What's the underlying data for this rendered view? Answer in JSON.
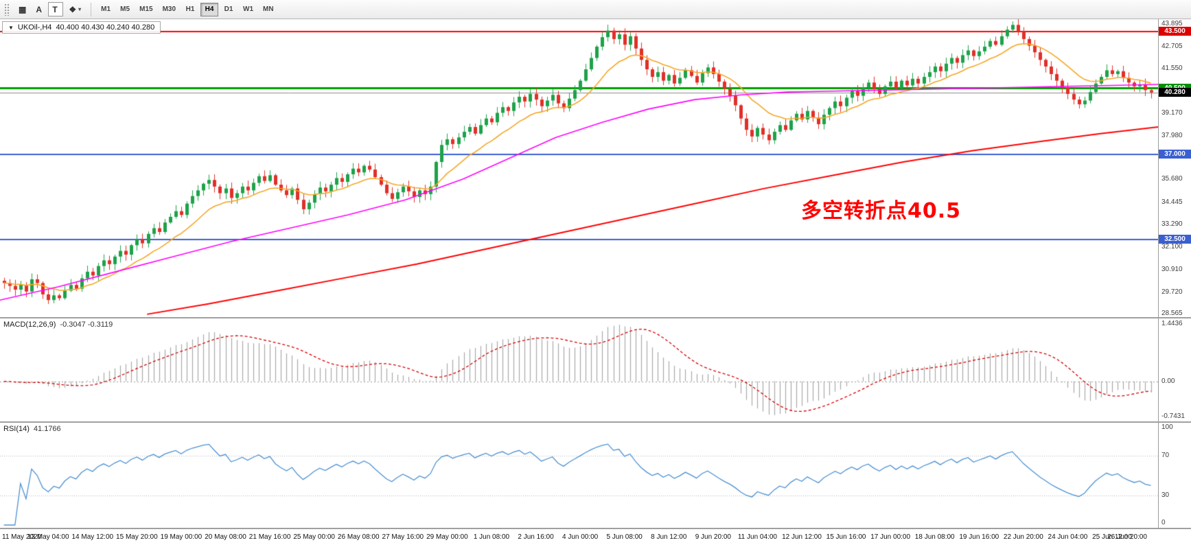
{
  "toolbar": {
    "buttons": [
      {
        "name": "chart-grid",
        "glyph": "▦",
        "caret": "",
        "bordered": false
      },
      {
        "name": "letter-a",
        "glyph": "A",
        "caret": "",
        "bordered": false
      },
      {
        "name": "text-tool",
        "glyph": "T",
        "caret": "",
        "bordered": true
      },
      {
        "name": "shapes",
        "glyph": "❖",
        "caret": "▾",
        "bordered": false
      }
    ],
    "timeframes": [
      "M1",
      "M5",
      "M15",
      "M30",
      "H1",
      "H4",
      "D1",
      "W1",
      "MN"
    ],
    "active_timeframe": "H4"
  },
  "chart": {
    "symbol_title": "UKOil-,H4",
    "ohlc": "40.400 40.430 40.240 40.280",
    "annotation": "多空转折点40.5",
    "scale_min": 28.4,
    "scale_max": 44.15,
    "y_ticks": [
      "43.895",
      "42.705",
      "41.550",
      "39.170",
      "37.980",
      "35.680",
      "34.445",
      "33.290",
      "32.100",
      "30.910",
      "29.720",
      "28.565"
    ],
    "hlines": [
      {
        "price": 43.5,
        "label": "43.500",
        "color": "#ff0000",
        "badge": "#dd0000",
        "width": 2
      },
      {
        "price": 40.5,
        "label": "40.500",
        "color": "#00a000",
        "badge": "#009000",
        "width": 3
      },
      {
        "price": 37.0,
        "label": "37.000",
        "color": "#3a5fd0",
        "badge": "#3a5fd0",
        "width": 2
      },
      {
        "price": 32.5,
        "label": "32.500",
        "color": "#3a5fd0",
        "badge": "#3a5fd0",
        "width": 2
      }
    ],
    "current_price": {
      "value": 40.28,
      "label": "40.280",
      "line_color": "#8a8a8a",
      "badge": "#000000"
    },
    "up_color": "#1ea24a",
    "down_color": "#e03028",
    "ma_fast_color": "#f5a623",
    "ma_mid_color": "#ff00ff",
    "ma_slow_color": "#ff0000",
    "closes": [
      30.2,
      30.05,
      29.85,
      30.1,
      29.75,
      30.4,
      30.2,
      29.6,
      29.3,
      29.55,
      29.4,
      29.8,
      30.1,
      29.9,
      30.45,
      30.8,
      30.6,
      31.1,
      31.4,
      31.2,
      31.6,
      31.9,
      31.7,
      32.2,
      32.5,
      32.3,
      32.8,
      33.1,
      32.9,
      33.4,
      33.7,
      34.0,
      33.8,
      34.4,
      34.8,
      35.1,
      35.45,
      35.65,
      35.3,
      34.95,
      35.2,
      34.7,
      34.95,
      35.3,
      35.1,
      35.5,
      35.85,
      35.6,
      35.9,
      35.4,
      35.1,
      34.85,
      35.2,
      34.6,
      34.1,
      34.45,
      34.9,
      35.25,
      35.05,
      35.4,
      35.75,
      35.55,
      35.95,
      36.25,
      36.05,
      36.4,
      36.2,
      35.8,
      35.4,
      34.95,
      34.65,
      35.0,
      35.3,
      35.05,
      34.75,
      35.1,
      34.9,
      35.3,
      36.6,
      37.5,
      37.8,
      37.55,
      37.9,
      38.2,
      38.45,
      38.1,
      38.55,
      38.9,
      38.7,
      39.2,
      39.5,
      39.3,
      39.75,
      40.05,
      39.8,
      40.2,
      39.9,
      39.55,
      39.85,
      40.15,
      39.7,
      39.45,
      39.95,
      40.4,
      40.9,
      41.5,
      42.1,
      42.7,
      43.2,
      43.55,
      43.1,
      43.35,
      42.8,
      43.25,
      42.6,
      42.0,
      41.5,
      41.1,
      41.35,
      40.9,
      41.2,
      40.75,
      41.05,
      41.45,
      41.15,
      40.8,
      41.3,
      41.6,
      41.25,
      40.85,
      40.45,
      40.1,
      39.6,
      38.9,
      38.3,
      37.95,
      38.4,
      38.05,
      37.75,
      38.2,
      38.55,
      38.3,
      38.8,
      39.15,
      38.85,
      39.3,
      38.95,
      38.6,
      39.1,
      39.45,
      39.8,
      39.55,
      40.0,
      40.35,
      40.1,
      40.55,
      40.8,
      40.45,
      40.2,
      40.6,
      40.85,
      40.5,
      40.9,
      40.65,
      41.0,
      40.75,
      41.1,
      41.35,
      41.65,
      41.4,
      41.8,
      42.1,
      41.85,
      42.25,
      42.5,
      42.2,
      42.45,
      42.7,
      43.0,
      42.8,
      43.25,
      43.6,
      43.85,
      43.5,
      43.1,
      42.75,
      42.4,
      42.0,
      41.65,
      41.25,
      40.9,
      40.55,
      40.2,
      39.9,
      39.65,
      39.85,
      40.3,
      40.75,
      41.1,
      41.45,
      41.25,
      41.4,
      41.05,
      40.8,
      40.6,
      40.7,
      40.4,
      40.28
    ],
    "ma_mid_points": [
      [
        0,
        29.3
      ],
      [
        0.05,
        30.0
      ],
      [
        0.1,
        30.8
      ],
      [
        0.15,
        31.6
      ],
      [
        0.2,
        32.4
      ],
      [
        0.25,
        33.1
      ],
      [
        0.3,
        33.8
      ],
      [
        0.35,
        34.6
      ],
      [
        0.4,
        35.7
      ],
      [
        0.44,
        36.8
      ],
      [
        0.48,
        37.9
      ],
      [
        0.52,
        38.7
      ],
      [
        0.56,
        39.4
      ],
      [
        0.6,
        39.9
      ],
      [
        0.64,
        40.15
      ],
      [
        0.68,
        40.3
      ],
      [
        0.72,
        40.35
      ],
      [
        0.76,
        40.4
      ],
      [
        0.8,
        40.45
      ],
      [
        0.84,
        40.5
      ],
      [
        0.88,
        40.55
      ],
      [
        0.92,
        40.6
      ],
      [
        0.96,
        40.65
      ],
      [
        1,
        40.7
      ]
    ],
    "ma_slow_points": [
      [
        0.127,
        28.55
      ],
      [
        0.18,
        29.1
      ],
      [
        0.24,
        29.8
      ],
      [
        0.3,
        30.5
      ],
      [
        0.36,
        31.2
      ],
      [
        0.42,
        32.0
      ],
      [
        0.48,
        32.8
      ],
      [
        0.54,
        33.6
      ],
      [
        0.6,
        34.4
      ],
      [
        0.66,
        35.2
      ],
      [
        0.72,
        35.9
      ],
      [
        0.78,
        36.6
      ],
      [
        0.84,
        37.2
      ],
      [
        0.9,
        37.7
      ],
      [
        0.95,
        38.1
      ],
      [
        1,
        38.45
      ]
    ],
    "time_labels": [
      "11 May 2020",
      "13 May 04:00",
      "14 May 12:00",
      "15 May 20:00",
      "19 May 00:00",
      "20 May 08:00",
      "21 May 16:00",
      "25 May 00:00",
      "26 May 08:00",
      "27 May 16:00",
      "29 May 00:00",
      "1 Jun 08:00",
      "2 Jun 16:00",
      "4 Jun 00:00",
      "5 Jun 08:00",
      "8 Jun 12:00",
      "9 Jun 20:00",
      "11 Jun 04:00",
      "12 Jun 12:00",
      "15 Jun 16:00",
      "17 Jun 00:00",
      "18 Jun 08:00",
      "19 Jun 16:00",
      "22 Jun 20:00",
      "24 Jun 04:00",
      "25 Jun 12:00",
      "26 Jun 20:00"
    ]
  },
  "macd": {
    "name": "MACD(12,26,9)",
    "values": "-0.3047 -0.3119",
    "fast": 12,
    "slow": 26,
    "signal": 9,
    "axis_top": "1.4436",
    "axis_zero": "0.00",
    "axis_bottom": "-0.7431",
    "hist_color": "#a8a8a8",
    "signal_color": "#d40000"
  },
  "rsi": {
    "name": "RSI(14)",
    "value": "41.1766",
    "period": 14,
    "line_color": "#4a90d2",
    "levels": [
      70,
      30
    ],
    "axis": [
      "100",
      "70",
      "30",
      "0"
    ]
  }
}
